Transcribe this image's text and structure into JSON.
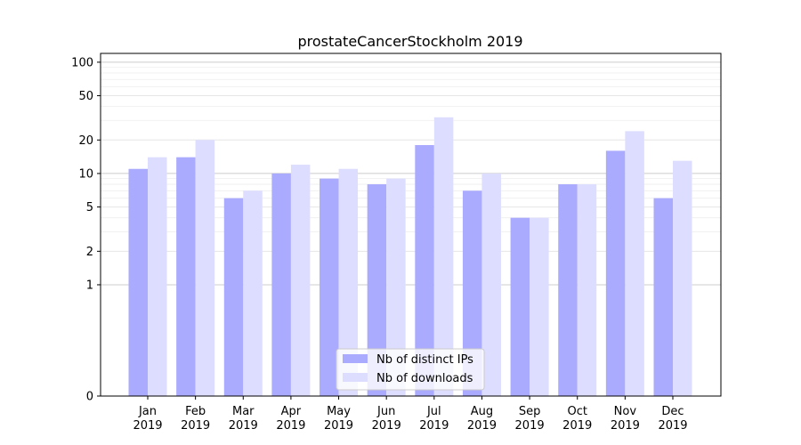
{
  "chart_data": {
    "type": "bar",
    "title": "prostateCancerStockholm 2019",
    "xlabel": "",
    "ylabel": "",
    "y_scale": "symlog",
    "ylim": [
      0,
      120
    ],
    "grid": "horizontal",
    "legend_position": "bottom-center",
    "categories": [
      "Jan\n2019",
      "Feb\n2019",
      "Mar\n2019",
      "Apr\n2019",
      "May\n2019",
      "Jun\n2019",
      "Jul\n2019",
      "Aug\n2019",
      "Sep\n2019",
      "Oct\n2019",
      "Nov\n2019",
      "Dec\n2019"
    ],
    "y_ticks": [
      0,
      1,
      2,
      5,
      10,
      20,
      50,
      100
    ],
    "series": [
      {
        "name": "Nb of distinct IPs",
        "color": "#aaaaff",
        "values": [
          11,
          14,
          6,
          10,
          9,
          8,
          18,
          7,
          4,
          8,
          16,
          6
        ]
      },
      {
        "name": "Nb of downloads",
        "color": "#ddddff",
        "values": [
          14,
          20,
          7,
          12,
          11,
          9,
          32,
          10,
          4,
          8,
          24,
          13
        ]
      }
    ]
  }
}
